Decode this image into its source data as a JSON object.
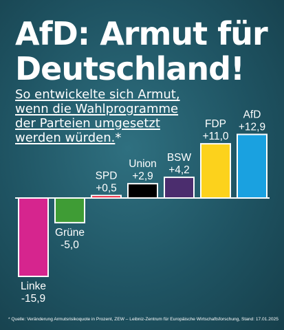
{
  "headline": {
    "line1": "AfD: Armut für",
    "line2": "Deutschland!"
  },
  "subtitle": {
    "line1": "So entwickelte sich Armut,",
    "line2": "wenn die Wahlprogramme",
    "line3": "der Parteien umgesetzt",
    "line4": "werden würden.",
    "asterisk": "*"
  },
  "footnote": "* Quelle: Veränderung Armutsrisikoquote in Prozent, ZEW – Leibniz-Zentrum für Europäische Wirtschaftsforschung, Stand: 17.01.2025",
  "chart_data": {
    "type": "bar",
    "categories": [
      "Linke",
      "Grüne",
      "SPD",
      "Union",
      "BSW",
      "FDP",
      "AfD"
    ],
    "values": [
      -15.9,
      -5.0,
      0.5,
      2.9,
      4.2,
      11.0,
      12.9
    ],
    "value_labels": [
      "-15,9",
      "-5,0",
      "+0,5",
      "+2,9",
      "+4,2",
      "+11,0",
      "+12,9"
    ],
    "colors": [
      "#d6258e",
      "#3f9c35",
      "#e3001b",
      "#000000",
      "#4b2d6e",
      "#fcd21c",
      "#1aa1e0"
    ],
    "ylim": [
      -15.9,
      12.9
    ],
    "grid": false,
    "legend": "none"
  }
}
